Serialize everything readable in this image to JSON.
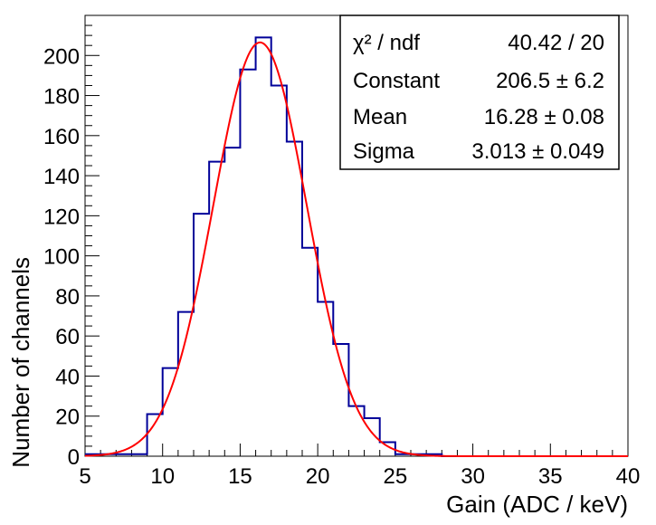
{
  "chart_data": {
    "type": "histogram",
    "title": "",
    "xlabel": "Gain (ADC / keV)",
    "ylabel": "Number of channels",
    "xlim": [
      5,
      40
    ],
    "ylim": [
      0,
      220
    ],
    "x_ticks": [
      5,
      10,
      15,
      20,
      25,
      30,
      35,
      40
    ],
    "y_ticks": [
      0,
      20,
      40,
      60,
      80,
      100,
      120,
      140,
      160,
      180,
      200
    ],
    "grid": false,
    "histogram": {
      "color": "#000099",
      "bin_width": 1,
      "bin_edges_start": 5,
      "values": [
        1,
        1,
        1,
        1,
        21,
        44,
        72,
        121,
        147,
        154,
        193,
        209,
        185,
        157,
        104,
        77,
        56,
        25,
        19,
        7,
        1,
        1,
        1,
        0,
        0,
        0,
        0,
        0,
        0,
        0,
        0,
        0,
        0,
        0,
        0
      ]
    },
    "fit": {
      "type": "gaussian",
      "color": "#ff0000",
      "constant": 206.5,
      "mean": 16.28,
      "sigma": 3.013
    },
    "stats_box": {
      "rows": [
        {
          "label": "χ² / ndf",
          "value": "40.42 / 20"
        },
        {
          "label": "Constant",
          "value": "206.5 ± 6.2"
        },
        {
          "label": "Mean",
          "value": "16.28 ± 0.08"
        },
        {
          "label": "Sigma",
          "value": "3.013 ± 0.049"
        }
      ],
      "placement": "top-right"
    }
  }
}
